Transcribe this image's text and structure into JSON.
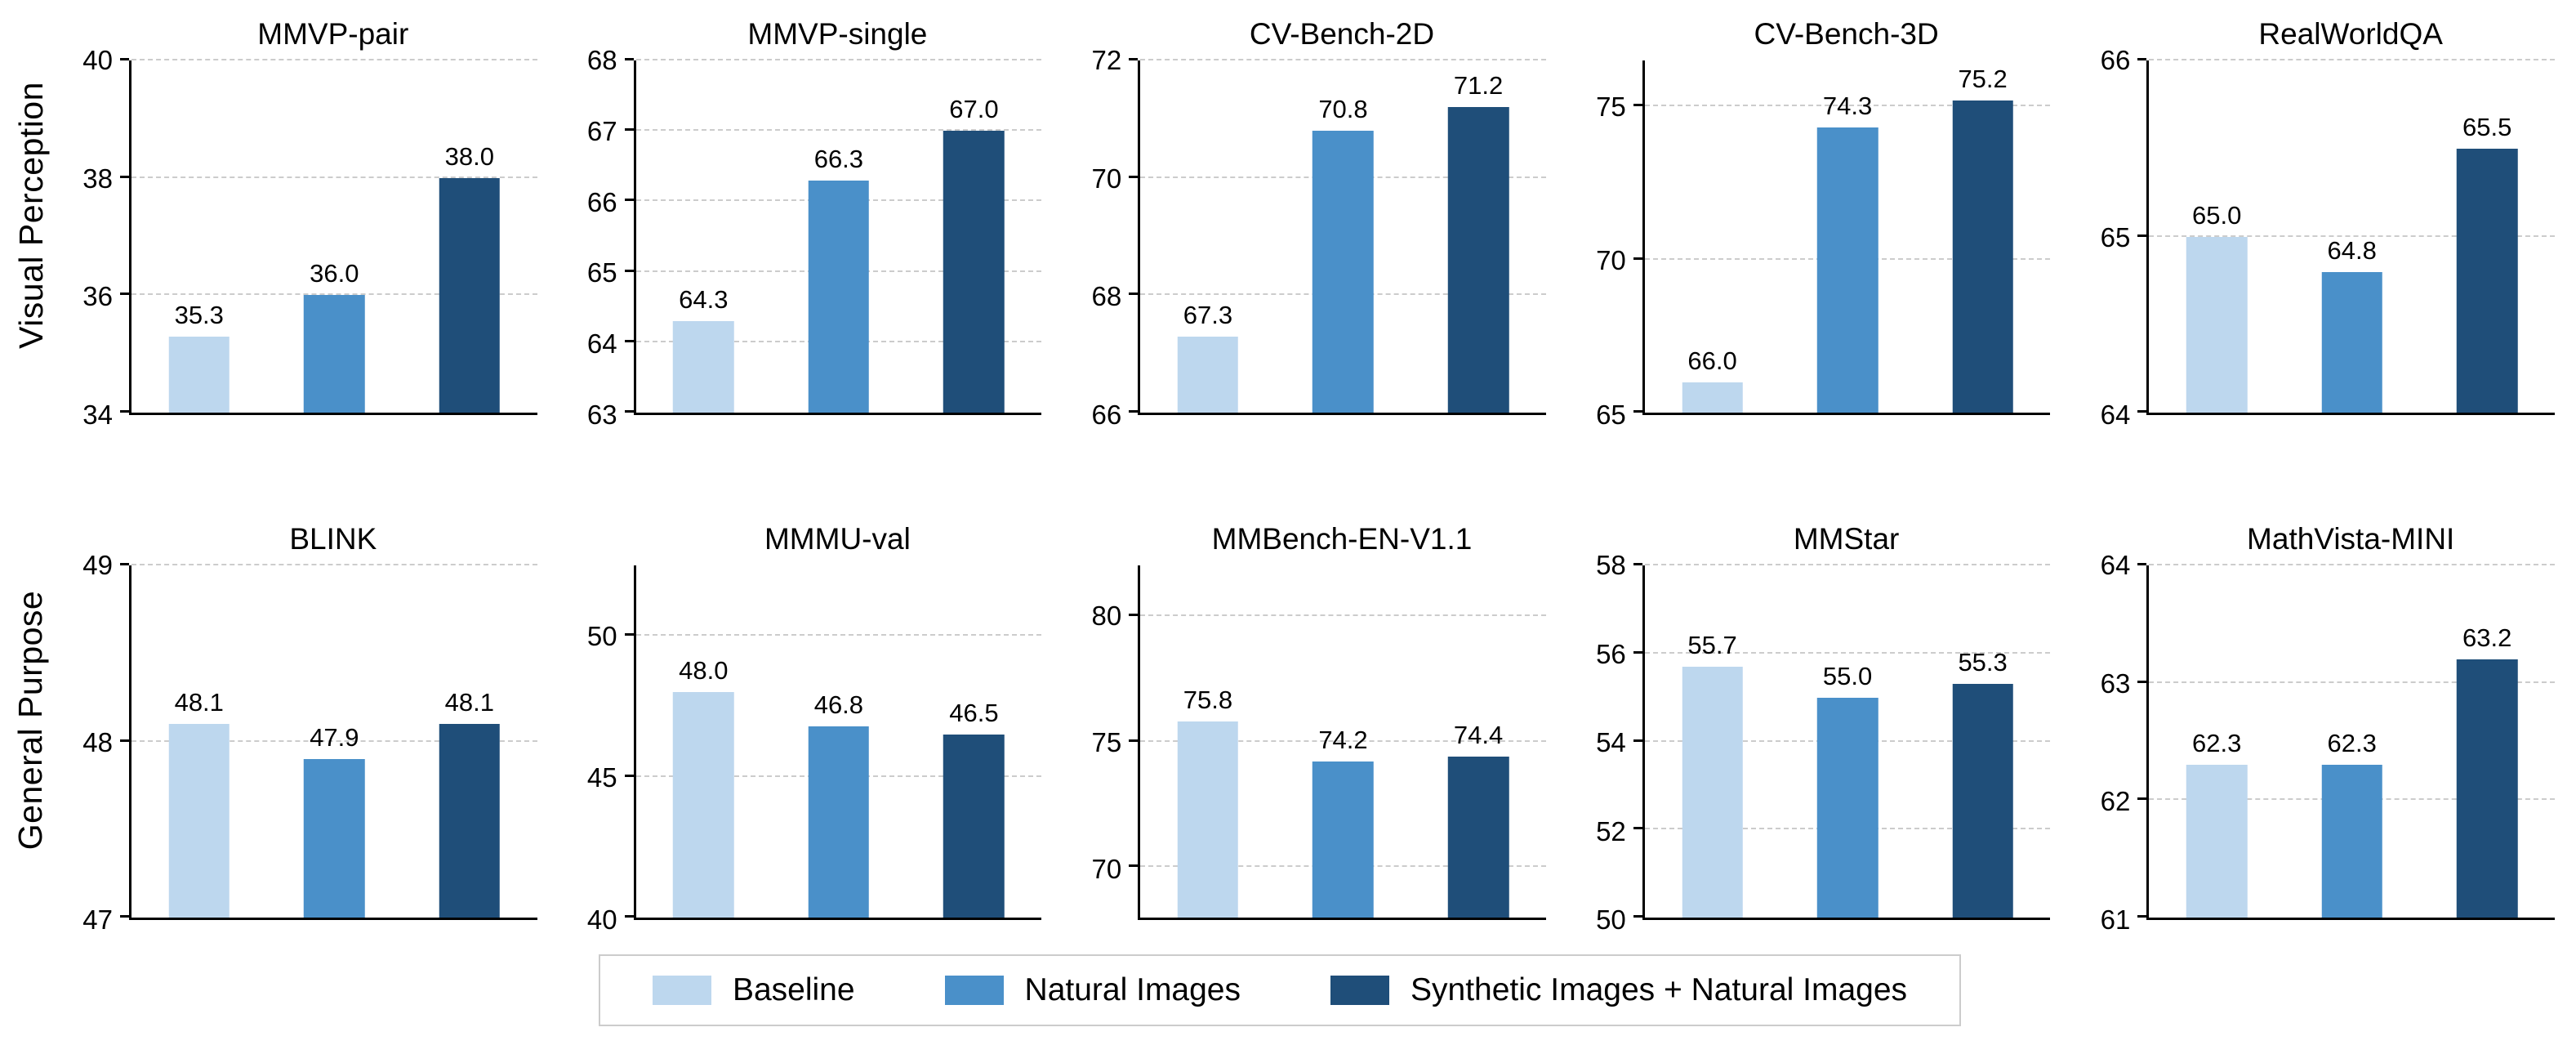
{
  "figure": {
    "background": "#ffffff"
  },
  "rows": [
    {
      "label": "Visual Perception"
    },
    {
      "label": "General Purpose"
    }
  ],
  "legend": {
    "position": "bottom",
    "items": [
      {
        "label": "Baseline",
        "color": "#BDD7EE"
      },
      {
        "label": "Natural Images",
        "color": "#4A90C9"
      },
      {
        "label": "Synthetic Images + Natural Images",
        "color": "#1F4E79"
      }
    ]
  },
  "chart_data": [
    {
      "type": "bar",
      "title": "MMVP-pair",
      "row": "Visual Perception",
      "categories": [
        "Baseline",
        "Natural Images",
        "Synthetic Images + Natural Images"
      ],
      "values": [
        35.3,
        36.0,
        38.0
      ],
      "value_labels": [
        "35.3",
        "36.0",
        "38.0"
      ],
      "ylim": [
        34,
        40
      ],
      "yticks": [
        34,
        36,
        38,
        40
      ],
      "grid": "dashed-horizontal",
      "xlabel": "",
      "ylabel": ""
    },
    {
      "type": "bar",
      "title": "MMVP-single",
      "row": "Visual Perception",
      "categories": [
        "Baseline",
        "Natural Images",
        "Synthetic Images + Natural Images"
      ],
      "values": [
        64.3,
        66.3,
        67.0
      ],
      "value_labels": [
        "64.3",
        "66.3",
        "67.0"
      ],
      "ylim": [
        63,
        68
      ],
      "yticks": [
        63,
        64,
        65,
        66,
        67,
        68
      ],
      "grid": "dashed-horizontal",
      "xlabel": "",
      "ylabel": ""
    },
    {
      "type": "bar",
      "title": "CV-Bench-2D",
      "row": "Visual Perception",
      "categories": [
        "Baseline",
        "Natural Images",
        "Synthetic Images + Natural Images"
      ],
      "values": [
        67.3,
        70.8,
        71.2
      ],
      "value_labels": [
        "67.3",
        "70.8",
        "71.2"
      ],
      "ylim": [
        66,
        72
      ],
      "yticks": [
        66,
        68,
        70,
        72
      ],
      "grid": "dashed-horizontal",
      "xlabel": "",
      "ylabel": ""
    },
    {
      "type": "bar",
      "title": "CV-Bench-3D",
      "row": "Visual Perception",
      "categories": [
        "Baseline",
        "Natural Images",
        "Synthetic Images + Natural Images"
      ],
      "values": [
        66.0,
        74.3,
        75.2
      ],
      "value_labels": [
        "66.0",
        "74.3",
        "75.2"
      ],
      "ylim": [
        65,
        76.5
      ],
      "yticks": [
        65,
        70,
        75
      ],
      "grid": "dashed-horizontal",
      "xlabel": "",
      "ylabel": ""
    },
    {
      "type": "bar",
      "title": "RealWorldQA",
      "row": "Visual Perception",
      "categories": [
        "Baseline",
        "Natural Images",
        "Synthetic Images + Natural Images"
      ],
      "values": [
        65.0,
        64.8,
        65.5
      ],
      "value_labels": [
        "65.0",
        "64.8",
        "65.5"
      ],
      "ylim": [
        64,
        66
      ],
      "yticks": [
        64,
        65,
        66
      ],
      "grid": "dashed-horizontal",
      "xlabel": "",
      "ylabel": ""
    },
    {
      "type": "bar",
      "title": "BLINK",
      "row": "General Purpose",
      "categories": [
        "Baseline",
        "Natural Images",
        "Synthetic Images + Natural Images"
      ],
      "values": [
        48.1,
        47.9,
        48.1
      ],
      "value_labels": [
        "48.1",
        "47.9",
        "48.1"
      ],
      "ylim": [
        47,
        49
      ],
      "yticks": [
        47,
        48,
        49
      ],
      "grid": "dashed-horizontal",
      "xlabel": "",
      "ylabel": ""
    },
    {
      "type": "bar",
      "title": "MMMU-val",
      "row": "General Purpose",
      "categories": [
        "Baseline",
        "Natural Images",
        "Synthetic Images + Natural Images"
      ],
      "values": [
        48.0,
        46.8,
        46.5
      ],
      "value_labels": [
        "48.0",
        "46.8",
        "46.5"
      ],
      "ylim": [
        40,
        52.5
      ],
      "yticks": [
        40,
        45,
        50
      ],
      "grid": "dashed-horizontal",
      "xlabel": "",
      "ylabel": ""
    },
    {
      "type": "bar",
      "title": "MMBench-EN-V1.1",
      "row": "General Purpose",
      "categories": [
        "Baseline",
        "Natural Images",
        "Synthetic Images + Natural Images"
      ],
      "values": [
        75.8,
        74.2,
        74.4
      ],
      "value_labels": [
        "75.8",
        "74.2",
        "74.4"
      ],
      "ylim": [
        68,
        82
      ],
      "yticks": [
        70,
        75,
        80
      ],
      "grid": "dashed-horizontal",
      "xlabel": "",
      "ylabel": ""
    },
    {
      "type": "bar",
      "title": "MMStar",
      "row": "General Purpose",
      "categories": [
        "Baseline",
        "Natural Images",
        "Synthetic Images + Natural Images"
      ],
      "values": [
        55.7,
        55.0,
        55.3
      ],
      "value_labels": [
        "55.7",
        "55.0",
        "55.3"
      ],
      "ylim": [
        50,
        58
      ],
      "yticks": [
        50,
        52,
        54,
        56,
        58
      ],
      "grid": "dashed-horizontal",
      "xlabel": "",
      "ylabel": ""
    },
    {
      "type": "bar",
      "title": "MathVista-MINI",
      "row": "General Purpose",
      "categories": [
        "Baseline",
        "Natural Images",
        "Synthetic Images + Natural Images"
      ],
      "values": [
        62.3,
        62.3,
        63.2
      ],
      "value_labels": [
        "62.3",
        "62.3",
        "63.2"
      ],
      "ylim": [
        61,
        64
      ],
      "yticks": [
        61,
        62,
        63,
        64
      ],
      "grid": "dashed-horizontal",
      "xlabel": "",
      "ylabel": ""
    }
  ]
}
